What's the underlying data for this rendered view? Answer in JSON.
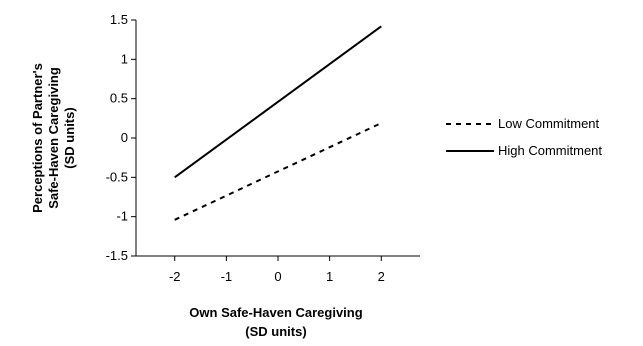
{
  "chart_data": {
    "type": "line",
    "x": [
      -2,
      2
    ],
    "xticks": [
      -2,
      -1,
      0,
      1,
      2
    ],
    "yticks": [
      -1.5,
      -1,
      -0.5,
      0,
      0.5,
      1,
      1.5
    ],
    "xlim": [
      -2.75,
      2.75
    ],
    "ylim": [
      -1.5,
      1.5
    ],
    "xlabel": [
      "Own Safe-Haven Caregiving",
      "(SD units)"
    ],
    "ylabel": [
      "Perceptions of Partner's",
      "Safe-Haven Caregiving",
      "(SD units)"
    ],
    "series": [
      {
        "name": "Low Commitment",
        "values": [
          -1.04,
          0.19
        ],
        "style": "dashed",
        "color": "#000000"
      },
      {
        "name": "High Commitment",
        "values": [
          -0.5,
          1.42
        ],
        "style": "solid",
        "color": "#000000"
      }
    ],
    "grid": false,
    "legend_position": "right"
  }
}
